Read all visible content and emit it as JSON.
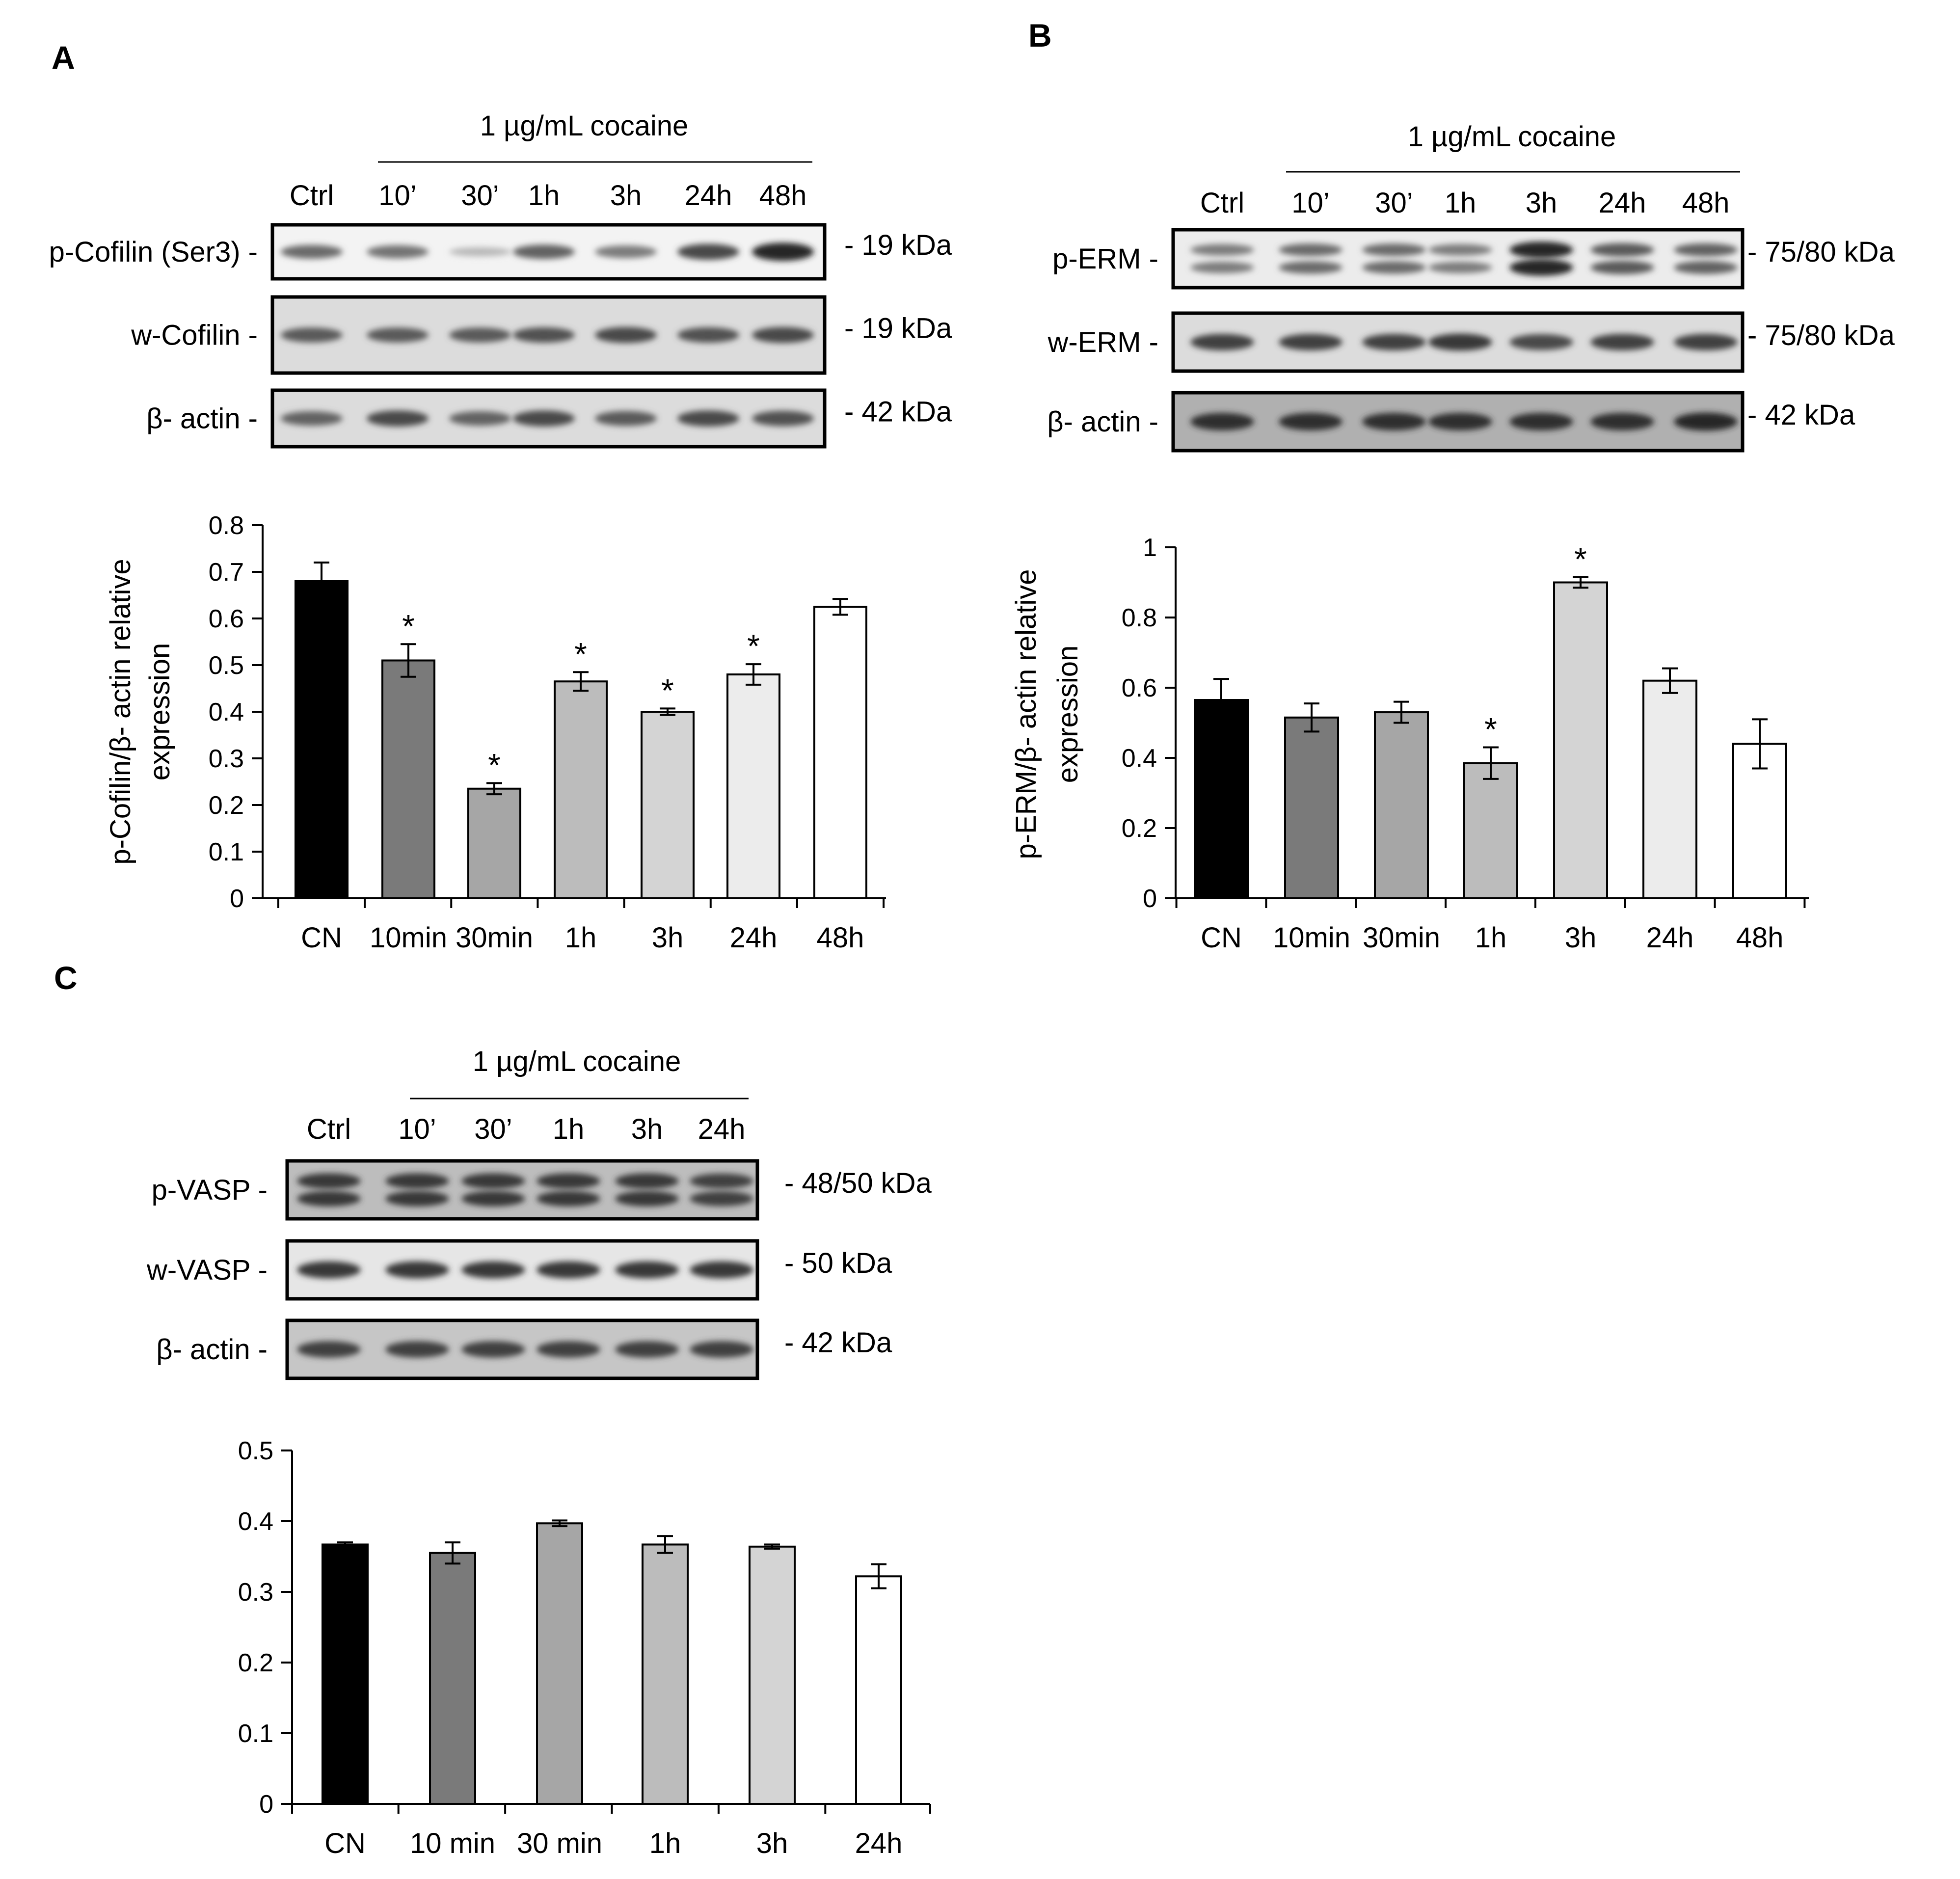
{
  "panels": [
    {
      "letter": "A",
      "treatment": "1 µg/mL cocaine",
      "lanes": [
        "Ctrl",
        "10’",
        "30’",
        "1h",
        "3h",
        "24h",
        "48h"
      ],
      "blots": [
        {
          "label": "p-Cofilin (Ser3) -",
          "kda": "- 19 kDa",
          "intensity": [
            0.55,
            0.5,
            0.1,
            0.6,
            0.45,
            0.75,
            0.95
          ],
          "double_band": false
        },
        {
          "label": "w-Cofilin -",
          "kda": "- 19 kDa",
          "intensity": [
            0.65,
            0.65,
            0.65,
            0.7,
            0.75,
            0.7,
            0.75
          ],
          "double_band": false
        },
        {
          "label": "β- actin -",
          "kda": "- 42 kDa",
          "intensity": [
            0.6,
            0.75,
            0.6,
            0.75,
            0.65,
            0.75,
            0.7
          ],
          "double_band": false
        }
      ]
    },
    {
      "letter": "B",
      "treatment": "1 µg/mL cocaine",
      "lanes": [
        "Ctrl",
        "10’",
        "30’",
        "1h",
        "3h",
        "24h",
        "48h"
      ],
      "blots": [
        {
          "label": "p-ERM -",
          "kda": "- 75/80 kDa",
          "intensity": [
            0.45,
            0.55,
            0.55,
            0.45,
            0.95,
            0.65,
            0.6
          ],
          "double_band": true
        },
        {
          "label": "w-ERM -",
          "kda": "- 75/80 kDa",
          "intensity": [
            0.8,
            0.8,
            0.8,
            0.85,
            0.75,
            0.8,
            0.8
          ],
          "double_band": false
        },
        {
          "label": "β- actin -",
          "kda": "- 42 kDa",
          "intensity": [
            0.9,
            0.9,
            0.9,
            0.9,
            0.9,
            0.9,
            0.95
          ],
          "double_band": false
        }
      ]
    },
    {
      "letter": "C",
      "treatment": "1 µg/mL cocaine",
      "lanes": [
        "Ctrl",
        "10’",
        "30’",
        "1h",
        "3h",
        "24h"
      ],
      "blots": [
        {
          "label": "p-VASP -",
          "kda": "- 48/50 kDa",
          "intensity": [
            0.85,
            0.85,
            0.85,
            0.85,
            0.85,
            0.8
          ],
          "double_band": true
        },
        {
          "label": "w-VASP -",
          "kda": "- 50 kDa",
          "intensity": [
            0.85,
            0.85,
            0.85,
            0.85,
            0.85,
            0.85
          ],
          "double_band": false
        },
        {
          "label": "β- actin -",
          "kda": "- 42 kDa",
          "intensity": [
            0.8,
            0.8,
            0.8,
            0.8,
            0.8,
            0.8
          ],
          "double_band": false
        }
      ]
    }
  ],
  "chart_data": [
    {
      "type": "bar",
      "panel": "A",
      "title": "",
      "xlabel": "",
      "ylabel_line1": "p-Cofilin/β- actin  relative",
      "ylabel_line2": "expression",
      "categories": [
        "CN",
        "10min",
        "30min",
        "1h",
        "3h",
        "24h",
        "48h"
      ],
      "values": [
        0.68,
        0.51,
        0.235,
        0.465,
        0.4,
        0.48,
        0.625
      ],
      "errors": [
        0.04,
        0.035,
        0.012,
        0.02,
        0.007,
        0.022,
        0.017
      ],
      "significant": [
        false,
        true,
        true,
        true,
        true,
        true,
        false
      ],
      "significance_symbol": "*",
      "colors": [
        "#000000",
        "#7a7a7a",
        "#a6a6a6",
        "#bcbcbc",
        "#d4d4d4",
        "#ececec",
        "#ffffff"
      ],
      "ylim": [
        0,
        0.8
      ],
      "yticks": [
        0,
        0.1,
        0.2,
        0.3,
        0.4,
        0.5,
        0.6,
        0.7,
        0.8
      ],
      "ytick_labels": [
        "0",
        "0.1",
        "0.2",
        "0.3",
        "0.4",
        "0.5",
        "0.6",
        "0.7",
        "0.8"
      ],
      "grid": false
    },
    {
      "type": "bar",
      "panel": "B",
      "title": "",
      "xlabel": "",
      "ylabel_line1": "p-ERM/β- actin  relative",
      "ylabel_line2": "expression",
      "categories": [
        "CN",
        "10min",
        "30min",
        "1h",
        "3h",
        "24h",
        "48h"
      ],
      "values": [
        0.565,
        0.515,
        0.53,
        0.385,
        0.9,
        0.62,
        0.44
      ],
      "errors": [
        0.06,
        0.04,
        0.03,
        0.045,
        0.015,
        0.035,
        0.07
      ],
      "significant": [
        false,
        false,
        false,
        true,
        true,
        false,
        false
      ],
      "significance_symbol": "*",
      "colors": [
        "#000000",
        "#7a7a7a",
        "#a6a6a6",
        "#bcbcbc",
        "#d4d4d4",
        "#ececec",
        "#ffffff"
      ],
      "ylim": [
        0,
        1
      ],
      "yticks": [
        0,
        0.2,
        0.4,
        0.6,
        0.8,
        1
      ],
      "ytick_labels": [
        "0",
        "0.2",
        "0.4",
        "0.6",
        "0.8",
        "1"
      ],
      "grid": false
    },
    {
      "type": "bar",
      "panel": "C",
      "title": "",
      "xlabel": "",
      "ylabel_line1": "",
      "ylabel_line2": "",
      "categories": [
        "CN",
        "10 min",
        "30 min",
        "1h",
        "3h",
        "24h"
      ],
      "values": [
        0.367,
        0.355,
        0.397,
        0.367,
        0.364,
        0.322
      ],
      "errors": [
        0.003,
        0.015,
        0.004,
        0.012,
        0.003,
        0.017
      ],
      "significant": [
        false,
        false,
        false,
        false,
        false,
        false
      ],
      "significance_symbol": "*",
      "colors": [
        "#000000",
        "#7a7a7a",
        "#a6a6a6",
        "#bcbcbc",
        "#d4d4d4",
        "#ffffff"
      ],
      "ylim": [
        0,
        0.5
      ],
      "yticks": [
        0,
        0.1,
        0.2,
        0.3,
        0.4,
        0.5
      ],
      "ytick_labels": [
        "0",
        "0.1",
        "0.2",
        "0.3",
        "0.4",
        "0.5"
      ],
      "grid": false
    }
  ]
}
